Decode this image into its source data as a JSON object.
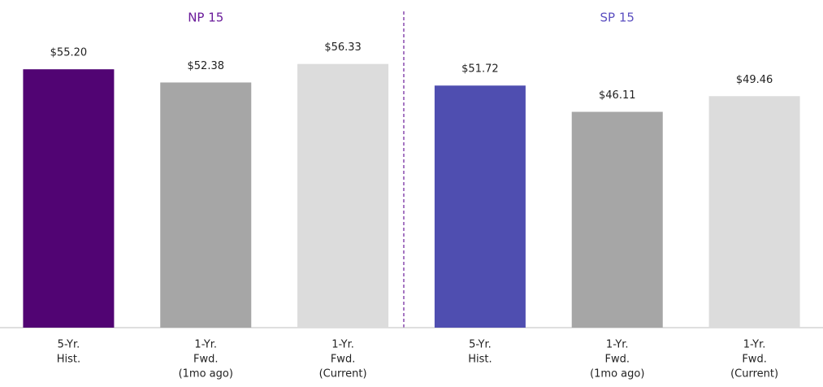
{
  "chart_data": {
    "type": "bar",
    "ylim": [
      0,
      70
    ],
    "groups": [
      {
        "name": "NP 15",
        "name_color": "#6a1b9a",
        "categories": [
          [
            "5-Yr.",
            "Hist."
          ],
          [
            "1-Yr.",
            "Fwd.",
            "(1mo ago)"
          ],
          [
            "1-Yr.",
            "Fwd.",
            "(Current)"
          ]
        ],
        "values": [
          55.2,
          52.38,
          56.33
        ],
        "value_labels": [
          "$55.20",
          "$52.38",
          "$56.33"
        ],
        "colors": [
          "#510473",
          "#a6a6a6",
          "#dcdcdc"
        ]
      },
      {
        "name": "SP 15",
        "name_color": "#5b4fc0",
        "categories": [
          [
            "5-Yr.",
            "Hist."
          ],
          [
            "1-Yr.",
            "Fwd.",
            "(1mo ago)"
          ],
          [
            "1-Yr.",
            "Fwd.",
            "(Current)"
          ]
        ],
        "values": [
          51.72,
          46.11,
          49.46
        ],
        "value_labels": [
          "$51.72",
          "$46.11",
          "$49.46"
        ],
        "colors": [
          "#4f4eb0",
          "#a6a6a6",
          "#dcdcdc"
        ]
      }
    ]
  }
}
